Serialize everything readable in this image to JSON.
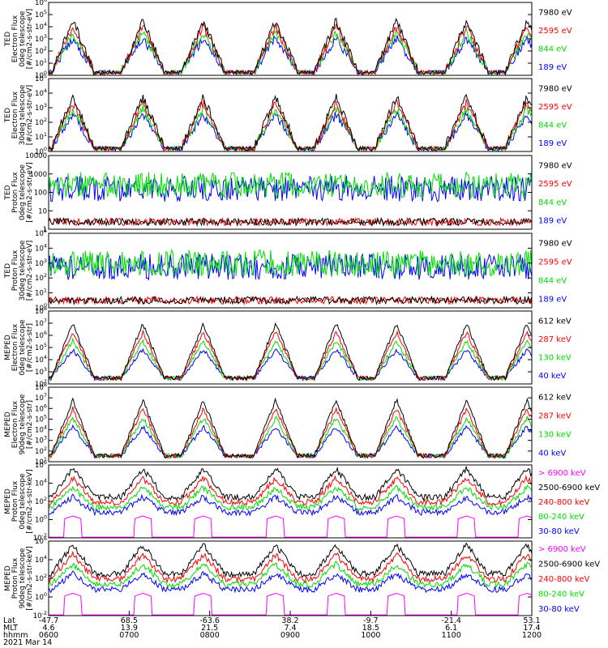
{
  "chart_data": [
    {
      "type": "line",
      "ylabel": [
        "TED",
        "Electron Flux",
        "0deg telescope",
        "[#/cm2-s-str-eV]"
      ],
      "yticks": [
        "10^{6}",
        "10^{5}",
        "10^{4}",
        "10^{3}",
        "10^{2}",
        "10^{1}",
        "10^{0}"
      ],
      "legend": [
        {
          "label": "7980 eV",
          "color": "#000000"
        },
        {
          "label": "2595 eV",
          "color": "#ff0000"
        },
        {
          "label": "844 eV",
          "color": "#00dd00"
        },
        {
          "label": "189 eV",
          "color": "#0000ff"
        }
      ]
    },
    {
      "type": "line",
      "ylabel": [
        "TED",
        "Electron Flux",
        "30deg telescope",
        "[#/cm2-s-str-eV]"
      ],
      "yticks": [
        "10^{5}",
        "10^{4}",
        "10^{3}",
        "10^{2}",
        "10^{1}",
        "10^{0}"
      ],
      "legend": [
        {
          "label": "7980 eV",
          "color": "#000000"
        },
        {
          "label": "2595 eV",
          "color": "#ff0000"
        },
        {
          "label": "844 eV",
          "color": "#00dd00"
        },
        {
          "label": "189 eV",
          "color": "#0000ff"
        }
      ]
    },
    {
      "type": "line",
      "ylabel": [
        "TED",
        "Proton Flux",
        "0deg telescope",
        "[#/cm2-s-str-eV]"
      ],
      "yticks": [
        "10000",
        "1000",
        "100",
        "10",
        "1"
      ],
      "legend": [
        {
          "label": "7980 eV",
          "color": "#000000"
        },
        {
          "label": "2595 eV",
          "color": "#ff0000"
        },
        {
          "label": "844 eV",
          "color": "#00dd00"
        },
        {
          "label": "189 eV",
          "color": "#0000ff"
        }
      ]
    },
    {
      "type": "line",
      "ylabel": [
        "TED",
        "Proton Flux",
        "30deg telescope",
        "[#/cm2-s-str-eV]"
      ],
      "yticks": [
        "10^{5}",
        "10^{4}",
        "10^{3}",
        "10^{2}",
        "10^{1}",
        "10^{0}"
      ],
      "legend": [
        {
          "label": "7980 eV",
          "color": "#000000"
        },
        {
          "label": "2595 eV",
          "color": "#ff0000"
        },
        {
          "label": "844 eV",
          "color": "#00dd00"
        },
        {
          "label": "189 eV",
          "color": "#0000ff"
        }
      ]
    },
    {
      "type": "line",
      "ylabel": [
        "MEPED",
        "Electron Flux",
        "0deg telescope",
        "[#/cm2-s-str]"
      ],
      "yticks": [
        "10^{8}",
        "10^{7}",
        "10^{6}",
        "10^{5}",
        "10^{4}",
        "10^{3}",
        "10^{2}"
      ],
      "legend": [
        {
          "label": "612 keV",
          "color": "#000000"
        },
        {
          "label": "287 keV",
          "color": "#ff0000"
        },
        {
          "label": "130 keV",
          "color": "#00dd00"
        },
        {
          "label": "40 keV",
          "color": "#0000ff"
        }
      ]
    },
    {
      "type": "line",
      "ylabel": [
        "MEPED",
        "Electron Flux",
        "90deg telescope",
        "[#/cm2-s-str]"
      ],
      "yticks": [
        "10^{8}",
        "10^{7}",
        "10^{6}",
        "10^{5}",
        "10^{4}",
        "10^{3}",
        "10^{2}",
        "10^{1}"
      ],
      "legend": [
        {
          "label": "612 keV",
          "color": "#000000"
        },
        {
          "label": "287 keV",
          "color": "#ff0000"
        },
        {
          "label": "130 keV",
          "color": "#00dd00"
        },
        {
          "label": "40 keV",
          "color": "#0000ff"
        }
      ]
    },
    {
      "type": "line",
      "ylabel": [
        "MEPED",
        "Proton Flux",
        "0deg telescope",
        "[#/cm2-s-str-keV]"
      ],
      "yticks": [
        "10^{6}",
        "10^{4}",
        "10^{2}",
        "10^{0}",
        "10^{-2}"
      ],
      "legend": [
        {
          "label": "> 6900 keV",
          "color": "#ff00ff"
        },
        {
          "label": "2500-6900 keV",
          "color": "#000000"
        },
        {
          "label": "240-800 keV",
          "color": "#ff0000"
        },
        {
          "label": "80-240 keV",
          "color": "#00dd00"
        },
        {
          "label": "30-80 keV",
          "color": "#0000ff"
        }
      ]
    },
    {
      "type": "line",
      "ylabel": [
        "MEPED",
        "Proton Flux",
        "90deg telescope",
        "[#/cm2-s-str-keV]"
      ],
      "yticks": [
        "10^{6}",
        "10^{4}",
        "10^{2}",
        "10^{0}",
        "10^{-2}"
      ],
      "legend": [
        {
          "label": "> 6900 keV",
          "color": "#ff00ff"
        },
        {
          "label": "2500-6900 keV",
          "color": "#000000"
        },
        {
          "label": "240-800 keV",
          "color": "#ff0000"
        },
        {
          "label": "80-240 keV",
          "color": "#00dd00"
        },
        {
          "label": "30-80 keV",
          "color": "#0000ff"
        }
      ]
    }
  ],
  "x_axis": {
    "row_labels": [
      "Lat",
      "MLT",
      "hhmm"
    ],
    "date": "2021 Mar 14",
    "ticks": [
      {
        "lat": "-47.7",
        "mlt": "4.6",
        "hhmm": "0600"
      },
      {
        "lat": "68.5",
        "mlt": "13.9",
        "hhmm": "0700"
      },
      {
        "lat": "-63.6",
        "mlt": "21.5",
        "hhmm": "0800"
      },
      {
        "lat": "38.2",
        "mlt": "7.4",
        "hhmm": "0900"
      },
      {
        "lat": "-9.7",
        "mlt": "18.5",
        "hhmm": "1000"
      },
      {
        "lat": "-21.4",
        "mlt": "6.1",
        "hhmm": "1100"
      },
      {
        "lat": "53.1",
        "mlt": "17.4",
        "hhmm": "1200"
      }
    ]
  },
  "passes": [
    0.0,
    0.145,
    0.27,
    0.42,
    0.545,
    0.67,
    0.815,
    0.94
  ]
}
